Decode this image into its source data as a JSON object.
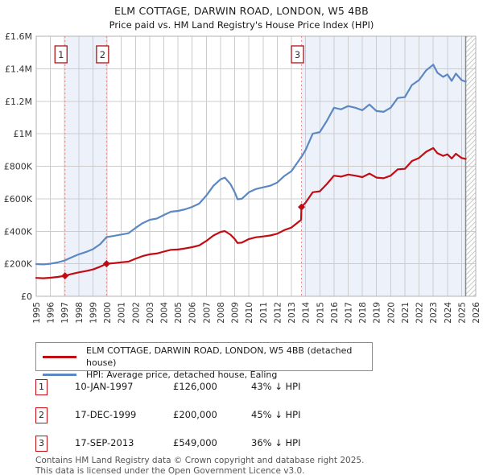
{
  "title": "ELM COTTAGE, DARWIN ROAD, LONDON, W5 4BB",
  "subtitle": "Price paid vs. HM Land Registry's House Price Index (HPI)",
  "chart_data": {
    "type": "line",
    "x_range": [
      1995,
      2026
    ],
    "y_range": [
      0,
      1600000
    ],
    "y_unit": "GBP",
    "grid": true,
    "legend_position": "below",
    "x_ticks": [
      1995,
      1996,
      1997,
      1998,
      1999,
      2000,
      2001,
      2002,
      2003,
      2004,
      2005,
      2006,
      2007,
      2008,
      2009,
      2010,
      2011,
      2012,
      2013,
      2014,
      2015,
      2016,
      2017,
      2018,
      2019,
      2020,
      2021,
      2022,
      2023,
      2024,
      2025,
      2026
    ],
    "y_ticks": [
      {
        "value": 0,
        "label": "£0"
      },
      {
        "value": 200000,
        "label": "£200K"
      },
      {
        "value": 400000,
        "label": "£400K"
      },
      {
        "value": 600000,
        "label": "£600K"
      },
      {
        "value": 800000,
        "label": "£800K"
      },
      {
        "value": 1000000,
        "label": "£1M"
      },
      {
        "value": 1200000,
        "label": "£1.2M"
      },
      {
        "value": 1400000,
        "label": "£1.4M"
      },
      {
        "value": 1600000,
        "label": "£1.6M"
      }
    ],
    "series": [
      {
        "name": "HPI: Average price, detached house, Ealing",
        "color": "#5b87c3",
        "points": [
          [
            1995,
            198000
          ],
          [
            1995.5,
            196000
          ],
          [
            1996,
            200000
          ],
          [
            1996.5,
            208000
          ],
          [
            1997.03,
            221000
          ],
          [
            1997.5,
            240000
          ],
          [
            1998,
            258000
          ],
          [
            1998.5,
            272000
          ],
          [
            1999,
            290000
          ],
          [
            1999.5,
            320000
          ],
          [
            1999.96,
            364000
          ],
          [
            2000.5,
            372000
          ],
          [
            2001,
            380000
          ],
          [
            2001.5,
            388000
          ],
          [
            2002,
            420000
          ],
          [
            2002.5,
            450000
          ],
          [
            2003,
            470000
          ],
          [
            2003.5,
            478000
          ],
          [
            2004,
            500000
          ],
          [
            2004.5,
            520000
          ],
          [
            2005,
            525000
          ],
          [
            2005.5,
            535000
          ],
          [
            2006,
            550000
          ],
          [
            2006.5,
            570000
          ],
          [
            2007,
            620000
          ],
          [
            2007.5,
            680000
          ],
          [
            2008,
            720000
          ],
          [
            2008.3,
            730000
          ],
          [
            2008.7,
            690000
          ],
          [
            2009,
            640000
          ],
          [
            2009.2,
            597000
          ],
          [
            2009.5,
            600000
          ],
          [
            2010,
            640000
          ],
          [
            2010.5,
            660000
          ],
          [
            2011,
            670000
          ],
          [
            2011.5,
            680000
          ],
          [
            2012,
            700000
          ],
          [
            2012.5,
            740000
          ],
          [
            2013,
            770000
          ],
          [
            2013.71,
            858000
          ],
          [
            2014,
            900000
          ],
          [
            2014.5,
            1000000
          ],
          [
            2015,
            1010000
          ],
          [
            2015.5,
            1080000
          ],
          [
            2016,
            1160000
          ],
          [
            2016.5,
            1150000
          ],
          [
            2017,
            1170000
          ],
          [
            2017.5,
            1160000
          ],
          [
            2018,
            1145000
          ],
          [
            2018.5,
            1180000
          ],
          [
            2019,
            1140000
          ],
          [
            2019.5,
            1135000
          ],
          [
            2020,
            1160000
          ],
          [
            2020.5,
            1220000
          ],
          [
            2021,
            1225000
          ],
          [
            2021.5,
            1300000
          ],
          [
            2022,
            1330000
          ],
          [
            2022.5,
            1390000
          ],
          [
            2023,
            1425000
          ],
          [
            2023.3,
            1375000
          ],
          [
            2023.7,
            1350000
          ],
          [
            2024,
            1365000
          ],
          [
            2024.3,
            1325000
          ],
          [
            2024.6,
            1370000
          ],
          [
            2025,
            1330000
          ],
          [
            2025.29,
            1320000
          ]
        ]
      },
      {
        "name": "ELM COTTAGE, DARWIN ROAD, LONDON, W5 4BB (detached house)",
        "color": "#c00c12",
        "points": [
          [
            1995,
            113000
          ],
          [
            1995.5,
            111000
          ],
          [
            1996,
            114000
          ],
          [
            1996.5,
            119000
          ],
          [
            1997.03,
            126000
          ],
          [
            1997.5,
            137000
          ],
          [
            1998,
            147000
          ],
          [
            1998.5,
            155000
          ],
          [
            1999,
            165000
          ],
          [
            1999.5,
            182000
          ],
          [
            1999.96,
            200000
          ],
          [
            2000.5,
            204000
          ],
          [
            2001,
            209000
          ],
          [
            2001.5,
            213000
          ],
          [
            2002,
            231000
          ],
          [
            2002.5,
            247000
          ],
          [
            2003,
            258000
          ],
          [
            2003.5,
            263000
          ],
          [
            2004,
            275000
          ],
          [
            2004.5,
            286000
          ],
          [
            2005,
            288000
          ],
          [
            2005.5,
            294000
          ],
          [
            2006,
            302000
          ],
          [
            2006.5,
            313000
          ],
          [
            2007,
            341000
          ],
          [
            2007.5,
            374000
          ],
          [
            2008,
            396000
          ],
          [
            2008.3,
            401000
          ],
          [
            2008.7,
            379000
          ],
          [
            2009,
            352000
          ],
          [
            2009.2,
            328000
          ],
          [
            2009.5,
            330000
          ],
          [
            2010,
            352000
          ],
          [
            2010.5,
            363000
          ],
          [
            2011,
            368000
          ],
          [
            2011.5,
            374000
          ],
          [
            2012,
            385000
          ],
          [
            2012.5,
            407000
          ],
          [
            2013,
            423000
          ],
          [
            2013.68,
            470000
          ],
          [
            2013.71,
            549000
          ],
          [
            2014,
            576000
          ],
          [
            2014.5,
            640000
          ],
          [
            2015,
            646000
          ],
          [
            2015.5,
            691000
          ],
          [
            2016,
            742000
          ],
          [
            2016.5,
            736000
          ],
          [
            2017,
            749000
          ],
          [
            2017.5,
            742000
          ],
          [
            2018,
            733000
          ],
          [
            2018.5,
            755000
          ],
          [
            2019,
            730000
          ],
          [
            2019.5,
            726000
          ],
          [
            2020,
            742000
          ],
          [
            2020.5,
            781000
          ],
          [
            2021,
            784000
          ],
          [
            2021.5,
            832000
          ],
          [
            2022,
            851000
          ],
          [
            2022.5,
            889000
          ],
          [
            2023,
            912000
          ],
          [
            2023.3,
            880000
          ],
          [
            2023.7,
            864000
          ],
          [
            2024,
            874000
          ],
          [
            2024.3,
            848000
          ],
          [
            2024.6,
            877000
          ],
          [
            2025,
            851000
          ],
          [
            2025.29,
            845000
          ]
        ]
      }
    ],
    "sales": [
      {
        "label": "1",
        "date": "10-JAN-1997",
        "x": 1997.03,
        "price": 126000,
        "hpi_diff": "43% ↓ HPI"
      },
      {
        "label": "2",
        "date": "17-DEC-1999",
        "x": 1999.96,
        "price": 200000,
        "hpi_diff": "45% ↓ HPI"
      },
      {
        "label": "3",
        "date": "17-SEP-2013",
        "x": 2013.71,
        "price": 549000,
        "hpi_diff": "36% ↓ HPI"
      }
    ],
    "shaded_regions": [
      [
        1997.03,
        1999.96
      ],
      [
        2013.71,
        2025.29
      ]
    ],
    "data_end": 2025.29,
    "hatch_region": [
      2025.29,
      2026
    ],
    "colors": {
      "shaded": "#edf2fa",
      "grid": "#cccccc",
      "border": "#b3b3b3",
      "sale_line": "#ee8888",
      "sale_box_border": "#b01116",
      "hatch": "#c9c9c9",
      "end_line": "#888888"
    }
  },
  "legend": {
    "items": [
      {
        "label": "ELM COTTAGE, DARWIN ROAD, LONDON, W5 4BB (detached house)",
        "color": "#c00c12"
      },
      {
        "label": "HPI: Average price, detached house, Ealing",
        "color": "#5b87c3"
      }
    ]
  },
  "sales_table": {
    "rows": [
      {
        "num": "1",
        "date": "10-JAN-1997",
        "price": "£126,000",
        "pct": "43% ↓ HPI"
      },
      {
        "num": "2",
        "date": "17-DEC-1999",
        "price": "£200,000",
        "pct": "45% ↓ HPI"
      },
      {
        "num": "3",
        "date": "17-SEP-2013",
        "price": "£549,000",
        "pct": "36% ↓ HPI"
      }
    ]
  },
  "footer": {
    "line1": "Contains HM Land Registry data © Crown copyright and database right 2025.",
    "line2": "This data is licensed under the Open Government Licence v3.0."
  }
}
